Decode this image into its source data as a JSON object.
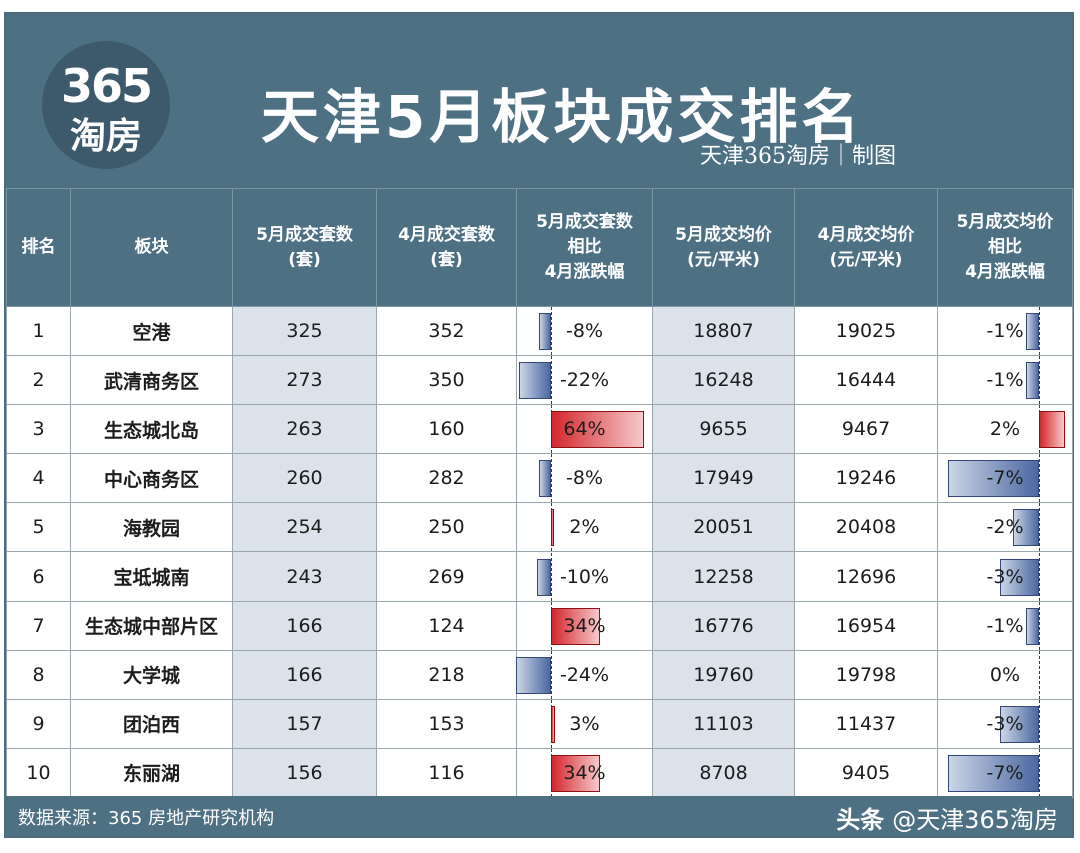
{
  "header": {
    "logo_top": "365",
    "logo_bottom": "淘房",
    "title": "天津5月板块成交排名",
    "subtitle": "天津365淘房｜制图"
  },
  "columns": [
    {
      "lines": [
        "排名"
      ]
    },
    {
      "lines": [
        "板块"
      ]
    },
    {
      "lines": [
        "5月成交套数",
        "(套)"
      ]
    },
    {
      "lines": [
        "4月成交套数",
        "(套)"
      ]
    },
    {
      "lines": [
        "5月成交套数",
        "相比",
        "4月涨跌幅"
      ]
    },
    {
      "lines": [
        "5月成交均价",
        "(元/平米)"
      ]
    },
    {
      "lines": [
        "4月成交均价",
        "(元/平米)"
      ]
    },
    {
      "lines": [
        "5月成交均价",
        "相比",
        "4月涨跌幅"
      ]
    }
  ],
  "rows": [
    {
      "rank": "1",
      "zone": "空港",
      "may_units": "325",
      "apr_units": "352",
      "units_change": "-8%",
      "units_change_value": -8,
      "may_price": "18807",
      "apr_price": "19025",
      "price_change": "-1%",
      "price_change_value": -1
    },
    {
      "rank": "2",
      "zone": "武清商务区",
      "may_units": "273",
      "apr_units": "350",
      "units_change": "-22%",
      "units_change_value": -22,
      "may_price": "16248",
      "apr_price": "16444",
      "price_change": "-1%",
      "price_change_value": -1
    },
    {
      "rank": "3",
      "zone": "生态城北岛",
      "may_units": "263",
      "apr_units": "160",
      "units_change": "64%",
      "units_change_value": 64,
      "may_price": "9655",
      "apr_price": "9467",
      "price_change": "2%",
      "price_change_value": 2
    },
    {
      "rank": "4",
      "zone": "中心商务区",
      "may_units": "260",
      "apr_units": "282",
      "units_change": "-8%",
      "units_change_value": -8,
      "may_price": "17949",
      "apr_price": "19246",
      "price_change": "-7%",
      "price_change_value": -7
    },
    {
      "rank": "5",
      "zone": "海教园",
      "may_units": "254",
      "apr_units": "250",
      "units_change": "2%",
      "units_change_value": 2,
      "may_price": "20051",
      "apr_price": "20408",
      "price_change": "-2%",
      "price_change_value": -2
    },
    {
      "rank": "6",
      "zone": "宝坻城南",
      "may_units": "243",
      "apr_units": "269",
      "units_change": "-10%",
      "units_change_value": -10,
      "may_price": "12258",
      "apr_price": "12696",
      "price_change": "-3%",
      "price_change_value": -3
    },
    {
      "rank": "7",
      "zone": "生态城中部片区",
      "may_units": "166",
      "apr_units": "124",
      "units_change": "34%",
      "units_change_value": 34,
      "may_price": "16776",
      "apr_price": "16954",
      "price_change": "-1%",
      "price_change_value": -1
    },
    {
      "rank": "8",
      "zone": "大学城",
      "may_units": "166",
      "apr_units": "218",
      "units_change": "-24%",
      "units_change_value": -24,
      "may_price": "19760",
      "apr_price": "19798",
      "price_change": "0%",
      "price_change_value": 0
    },
    {
      "rank": "9",
      "zone": "团泊西",
      "may_units": "157",
      "apr_units": "153",
      "units_change": "3%",
      "units_change_value": 3,
      "may_price": "11103",
      "apr_price": "11437",
      "price_change": "-3%",
      "price_change_value": -3
    },
    {
      "rank": "10",
      "zone": "东丽湖",
      "may_units": "156",
      "apr_units": "116",
      "units_change": "34%",
      "units_change_value": 34,
      "may_price": "8708",
      "apr_price": "9405",
      "price_change": "-7%",
      "price_change_value": -7
    }
  ],
  "colors": {
    "header_bg": "#4e7083",
    "negative_bar": "#4b68a0",
    "positive_bar": "#d3272d",
    "shaded_column": "#dbe2ea"
  },
  "footer": {
    "source": "数据来源：365 房地产研究机构",
    "credit_label": "头条",
    "credit_handle": "@天津365淘房"
  }
}
